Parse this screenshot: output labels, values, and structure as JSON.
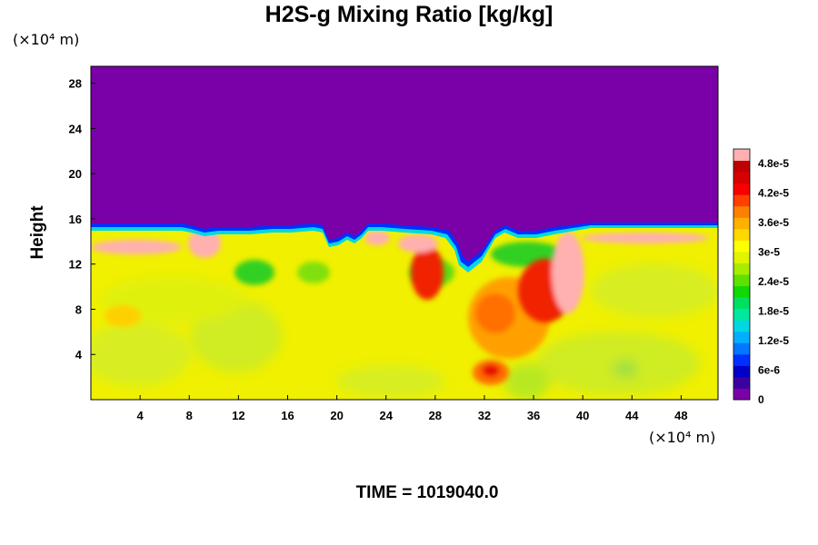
{
  "chart_data": {
    "type": "heatmap",
    "title": "H2S-g Mixing Ratio [kg/kg]",
    "ylabel": "Height",
    "xunit": "(×10⁴ m)",
    "yunit": "(×10⁴ m)",
    "xlim": [
      0,
      51
    ],
    "ylim": [
      0,
      29.5
    ],
    "xticks": [
      4,
      8,
      12,
      16,
      20,
      24,
      28,
      32,
      36,
      40,
      44,
      48
    ],
    "yticks": [
      4,
      8,
      12,
      16,
      20,
      24,
      28
    ],
    "colorbar": {
      "labels": [
        "0",
        "6e-6",
        "1.2e-5",
        "1.8e-5",
        "2.4e-5",
        "3e-5",
        "3.6e-5",
        "4.2e-5",
        "4.8e-5"
      ],
      "max": 5.1e-05,
      "colors": [
        "#7a00a8",
        "#3d00a0",
        "#0000c8",
        "#0030ff",
        "#0078ff",
        "#00b0ff",
        "#00d8e0",
        "#00e8a0",
        "#00e060",
        "#10d800",
        "#60e000",
        "#a8ec00",
        "#e0f400",
        "#ffff00",
        "#ffd800",
        "#ffb000",
        "#ff8000",
        "#ff4000",
        "#f80000",
        "#d80000",
        "#c00000",
        "#ffb0b0"
      ]
    },
    "field_description_values": {
      "upper_layer_value": 0,
      "lower_layer_typical_value": 3.6e-05,
      "interface_height": 15.7
    }
  },
  "footer": {
    "time_label": "TIME = 1019040.0"
  }
}
